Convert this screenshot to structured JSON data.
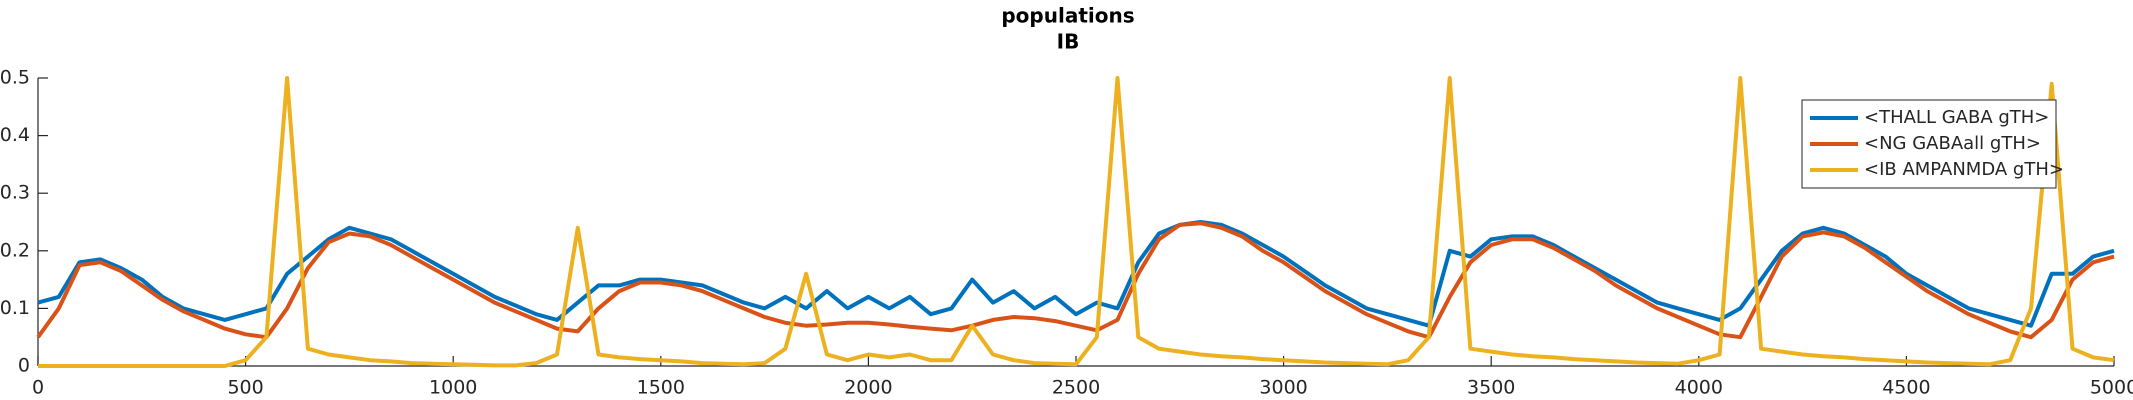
{
  "chart_data": {
    "type": "line",
    "title": [
      "populations",
      "IB"
    ],
    "x": [
      0,
      50,
      100,
      150,
      200,
      250,
      300,
      350,
      400,
      450,
      500,
      550,
      600,
      650,
      700,
      750,
      800,
      850,
      900,
      950,
      1000,
      1050,
      1100,
      1150,
      1200,
      1250,
      1300,
      1350,
      1400,
      1450,
      1500,
      1550,
      1600,
      1650,
      1700,
      1750,
      1800,
      1850,
      1900,
      1950,
      2000,
      2050,
      2100,
      2150,
      2200,
      2250,
      2300,
      2350,
      2400,
      2450,
      2500,
      2550,
      2600,
      2650,
      2700,
      2750,
      2800,
      2850,
      2900,
      2950,
      3000,
      3050,
      3100,
      3150,
      3200,
      3250,
      3300,
      3350,
      3400,
      3450,
      3500,
      3550,
      3600,
      3650,
      3700,
      3750,
      3800,
      3850,
      3900,
      3950,
      4000,
      4050,
      4100,
      4150,
      4200,
      4250,
      4300,
      4350,
      4400,
      4450,
      4500,
      4550,
      4600,
      4650,
      4700,
      4750,
      4800,
      4850,
      4900,
      4950,
      5000
    ],
    "series": [
      {
        "name": "<THALL GABA gTH>",
        "color": "#0072BD",
        "values": [
          0.11,
          0.12,
          0.18,
          0.185,
          0.17,
          0.15,
          0.12,
          0.1,
          0.09,
          0.08,
          0.09,
          0.1,
          0.16,
          0.19,
          0.22,
          0.24,
          0.23,
          0.22,
          0.2,
          0.18,
          0.16,
          0.14,
          0.12,
          0.105,
          0.09,
          0.08,
          0.11,
          0.14,
          0.14,
          0.15,
          0.15,
          0.145,
          0.14,
          0.125,
          0.11,
          0.1,
          0.12,
          0.1,
          0.13,
          0.1,
          0.12,
          0.1,
          0.12,
          0.09,
          0.1,
          0.15,
          0.11,
          0.13,
          0.1,
          0.12,
          0.09,
          0.11,
          0.1,
          0.18,
          0.23,
          0.245,
          0.25,
          0.245,
          0.23,
          0.21,
          0.19,
          0.165,
          0.14,
          0.12,
          0.1,
          0.09,
          0.08,
          0.07,
          0.2,
          0.19,
          0.22,
          0.225,
          0.225,
          0.21,
          0.19,
          0.17,
          0.15,
          0.13,
          0.11,
          0.1,
          0.09,
          0.08,
          0.1,
          0.15,
          0.2,
          0.23,
          0.24,
          0.23,
          0.21,
          0.19,
          0.16,
          0.14,
          0.12,
          0.1,
          0.09,
          0.08,
          0.07,
          0.16,
          0.16,
          0.19,
          0.2
        ]
      },
      {
        "name": "<NG GABAall gTH>",
        "color": "#D95319",
        "values": [
          0.05,
          0.1,
          0.175,
          0.18,
          0.165,
          0.14,
          0.115,
          0.095,
          0.08,
          0.065,
          0.055,
          0.05,
          0.1,
          0.17,
          0.215,
          0.23,
          0.225,
          0.21,
          0.19,
          0.17,
          0.15,
          0.13,
          0.11,
          0.095,
          0.08,
          0.065,
          0.06,
          0.1,
          0.13,
          0.145,
          0.145,
          0.14,
          0.13,
          0.115,
          0.1,
          0.085,
          0.075,
          0.07,
          0.072,
          0.075,
          0.075,
          0.072,
          0.068,
          0.065,
          0.062,
          0.07,
          0.08,
          0.085,
          0.083,
          0.078,
          0.07,
          0.062,
          0.08,
          0.16,
          0.22,
          0.245,
          0.248,
          0.24,
          0.225,
          0.2,
          0.18,
          0.155,
          0.13,
          0.11,
          0.09,
          0.075,
          0.06,
          0.05,
          0.12,
          0.18,
          0.21,
          0.22,
          0.22,
          0.205,
          0.185,
          0.165,
          0.14,
          0.12,
          0.1,
          0.085,
          0.07,
          0.055,
          0.05,
          0.12,
          0.19,
          0.225,
          0.232,
          0.225,
          0.205,
          0.18,
          0.155,
          0.13,
          0.11,
          0.09,
          0.075,
          0.06,
          0.05,
          0.08,
          0.15,
          0.18,
          0.19
        ]
      },
      {
        "name": "<IB AMPANMDA gTH>",
        "color": "#EDB120",
        "values": [
          0,
          0,
          0,
          0,
          0,
          0,
          0,
          0,
          0,
          0,
          0.01,
          0.05,
          0.5,
          0.03,
          0.02,
          0.015,
          0.01,
          0.008,
          0.005,
          0.004,
          0.003,
          0.002,
          0.001,
          0.001,
          0.005,
          0.02,
          0.24,
          0.02,
          0.015,
          0.012,
          0.01,
          0.008,
          0.005,
          0.004,
          0.003,
          0.005,
          0.03,
          0.16,
          0.02,
          0.01,
          0.02,
          0.015,
          0.02,
          0.01,
          0.01,
          0.07,
          0.02,
          0.01,
          0.005,
          0.004,
          0.003,
          0.05,
          0.5,
          0.05,
          0.03,
          0.025,
          0.02,
          0.017,
          0.015,
          0.012,
          0.01,
          0.008,
          0.006,
          0.005,
          0.004,
          0.003,
          0.01,
          0.05,
          0.5,
          0.03,
          0.025,
          0.02,
          0.017,
          0.015,
          0.012,
          0.01,
          0.008,
          0.006,
          0.005,
          0.004,
          0.01,
          0.02,
          0.5,
          0.03,
          0.025,
          0.02,
          0.017,
          0.015,
          0.012,
          0.01,
          0.008,
          0.006,
          0.005,
          0.004,
          0.003,
          0.01,
          0.1,
          0.49,
          0.03,
          0.015,
          0.01
        ]
      }
    ],
    "xlim": [
      0,
      5000
    ],
    "xticks": [
      0,
      500,
      1000,
      1500,
      2000,
      2500,
      3000,
      3500,
      4000,
      4500,
      5000
    ],
    "ylim": [
      0,
      0.5
    ],
    "yticks": [
      0,
      0.1,
      0.2,
      0.3,
      0.4,
      0.5
    ],
    "legend": "upper right"
  }
}
